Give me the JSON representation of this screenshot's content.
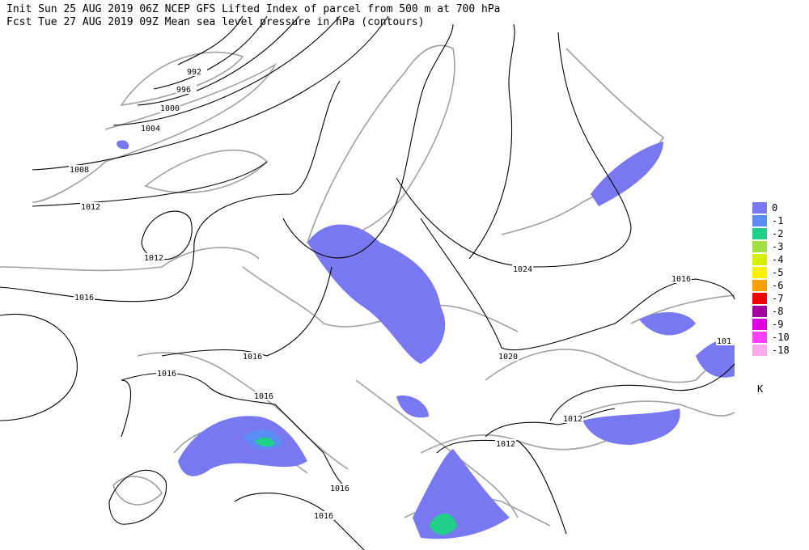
{
  "header": {
    "line1": "Init  Sun 25 AUG 2019 06Z  NCEP GFS Lifted Index of parcel from 500 m at 700 hPa",
    "line2": "Fcst Tue 27 AUG 2019 09Z  Mean sea level pressure in hPa (contours)"
  },
  "legend": {
    "items": [
      {
        "label": "0",
        "color": "#7878f0"
      },
      {
        "label": "-1",
        "color": "#5a8cf5"
      },
      {
        "label": "-2",
        "color": "#20d088"
      },
      {
        "label": "-3",
        "color": "#a0e040"
      },
      {
        "label": "-4",
        "color": "#d8f000"
      },
      {
        "label": "-5",
        "color": "#f8f000"
      },
      {
        "label": "-6",
        "color": "#f8a000"
      },
      {
        "label": "-7",
        "color": "#f00000"
      },
      {
        "label": "-8",
        "color": "#a000a0"
      },
      {
        "label": "-9",
        "color": "#e000e0"
      },
      {
        "label": "-10",
        "color": "#ff40ff"
      },
      {
        "label": "-18",
        "color": "#ffa8f0"
      }
    ],
    "unit": "K"
  },
  "contour_labels": [
    "992",
    "996",
    "1000",
    "1004",
    "1008",
    "1012",
    "1012",
    "1016",
    "1024",
    "1016",
    "1020",
    "1016",
    "1016",
    "1016",
    "1012",
    "1012",
    "1016",
    "1016",
    "101"
  ]
}
